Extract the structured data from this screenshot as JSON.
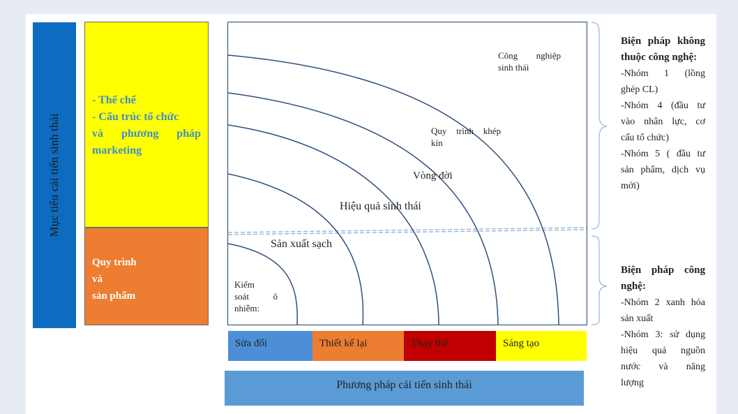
{
  "goal_label": "Mục tiêu cải tiến sinh thái",
  "institution_box": {
    "lines": [
      "- Thể chế",
      "- Cấu trúc tổ chức",
      "và phương pháp",
      "marketing"
    ]
  },
  "process_box": {
    "lines": [
      "Quy trình",
      "và",
      "sản phẩm"
    ]
  },
  "curve_labels": {
    "control": [
      "Kiểm",
      "soát ô",
      "nhiễm:"
    ],
    "clean_production": "Sản xuất sạch",
    "eco_efficiency": "Hiệu quả sinh thái",
    "life_cycle": "Vòng đời",
    "closed_loop": [
      "Quy trình khép",
      "kín"
    ],
    "industrial_ecology": [
      "Công nghiệp",
      "sinh thái"
    ]
  },
  "strips": [
    "Sửa đổi",
    "Thiết kế lại",
    "Thay thế",
    "Sáng tạo"
  ],
  "method_label": "Phương pháp cải tiến sinh thái",
  "side_top": {
    "title": [
      "Biện pháp không",
      "thuộc công nghệ:"
    ],
    "items": [
      "-Nhóm 1 (lồng",
      "ghép CL)",
      "-Nhóm 4 (đầu tư",
      "vào nhân lực, cơ",
      "cấu tổ chức)",
      "-Nhóm 5 ( đầu tư",
      "sản phẩm, dịch vụ",
      "mới)"
    ]
  },
  "side_bottom": {
    "title": [
      "Biện pháp công",
      "nghệ:"
    ],
    "items": [
      "-Nhóm 2 xanh hóa",
      "sản xuất",
      "-Nhóm 3: sử dụng",
      "hiệu quả nguồn",
      "nước và năng",
      "lượng"
    ]
  },
  "colors": {
    "goal_bar": "#0e6cc0",
    "institution_box": "#ffff00",
    "process_box": "#ed7d31",
    "curves": "#2f4f7f",
    "strip_modify": "#4d8fd6",
    "strip_redesign": "#ed7d31",
    "strip_replace": "#c00000",
    "strip_create": "#ffff00",
    "method_bar": "#5b9bd5"
  }
}
